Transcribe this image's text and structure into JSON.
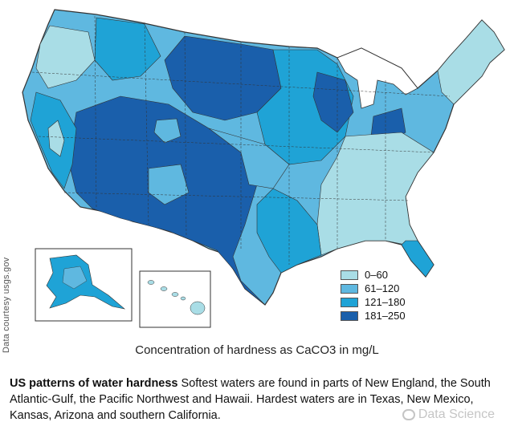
{
  "credit": "Data courtesy usgs.gov",
  "map_caption": "Concentration of hardness as CaCO3 in mg/L",
  "caption": {
    "title": "US patterns of water hardness",
    "body": "Softest waters are found in parts of New England, the South Atlantic-Gulf, the Pacific Northwest and Hawaii. Hardest waters are in Texas, New Mexico, Kansas, Arizona and southern California."
  },
  "legend": [
    {
      "label": "0–60",
      "color": "#a9dde6"
    },
    {
      "label": "61–120",
      "color": "#5fb8e0"
    },
    {
      "label": "121–180",
      "color": "#1fa3d6"
    },
    {
      "label": "181–250",
      "color": "#1a5fab"
    }
  ],
  "watermark": "Data Science",
  "colors": {
    "border": "#333333",
    "background": "#ffffff"
  }
}
